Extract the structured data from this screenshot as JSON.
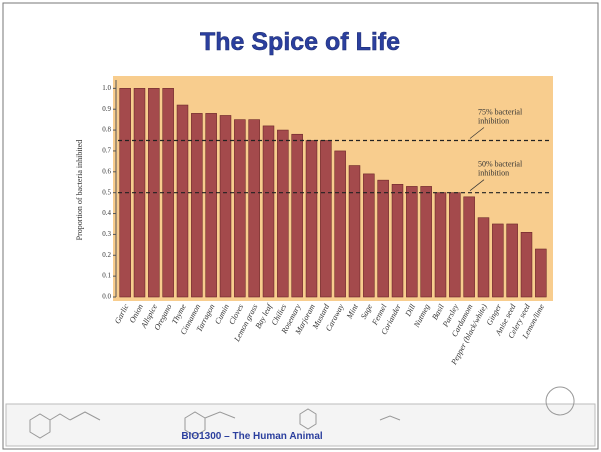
{
  "title": "The Spice of Life",
  "footer": "BIO1300 – The Human Animal",
  "chart_data": {
    "type": "bar",
    "y_label": "Proportion of bacteria inhibited",
    "categories": [
      "Garlic",
      "Onion",
      "Allspice",
      "Oregano",
      "Thyme",
      "Cinnamon",
      "Tarragon",
      "Cumin",
      "Cloves",
      "Lemon grass",
      "Bay leaf",
      "Chilies",
      "Rosemary",
      "Marjoram",
      "Mustard",
      "Caraway",
      "Mint",
      "Sage",
      "Fennel",
      "Coriander",
      "Dill",
      "Nutmeg",
      "Basil",
      "Parsley",
      "Cardamom",
      "Pepper (black/white)",
      "Ginger",
      "Anise seed",
      "Celery seed",
      "Lemon/lime"
    ],
    "values": [
      1.0,
      1.0,
      1.0,
      1.0,
      0.92,
      0.88,
      0.88,
      0.87,
      0.85,
      0.85,
      0.82,
      0.8,
      0.78,
      0.75,
      0.75,
      0.7,
      0.63,
      0.59,
      0.56,
      0.54,
      0.53,
      0.53,
      0.5,
      0.5,
      0.48,
      0.38,
      0.35,
      0.35,
      0.31,
      0.23
    ],
    "color": "#a44a4c",
    "ylim": [
      0,
      1.04
    ],
    "yticks": [
      {
        "value": 0,
        "label": "0.0"
      },
      0.1,
      0.2,
      0.3,
      0.4,
      0.5,
      0.6,
      0.7,
      0.8,
      0.9,
      {
        "value": 1,
        "label": "1.0"
      }
    ],
    "reference_lines": [
      {
        "value": 0.75,
        "label_lines": [
          "75% bacterial",
          "inhibition"
        ]
      },
      {
        "value": 0.5,
        "label_lines": [
          "50% bacterial",
          "inhibition"
        ]
      }
    ]
  }
}
